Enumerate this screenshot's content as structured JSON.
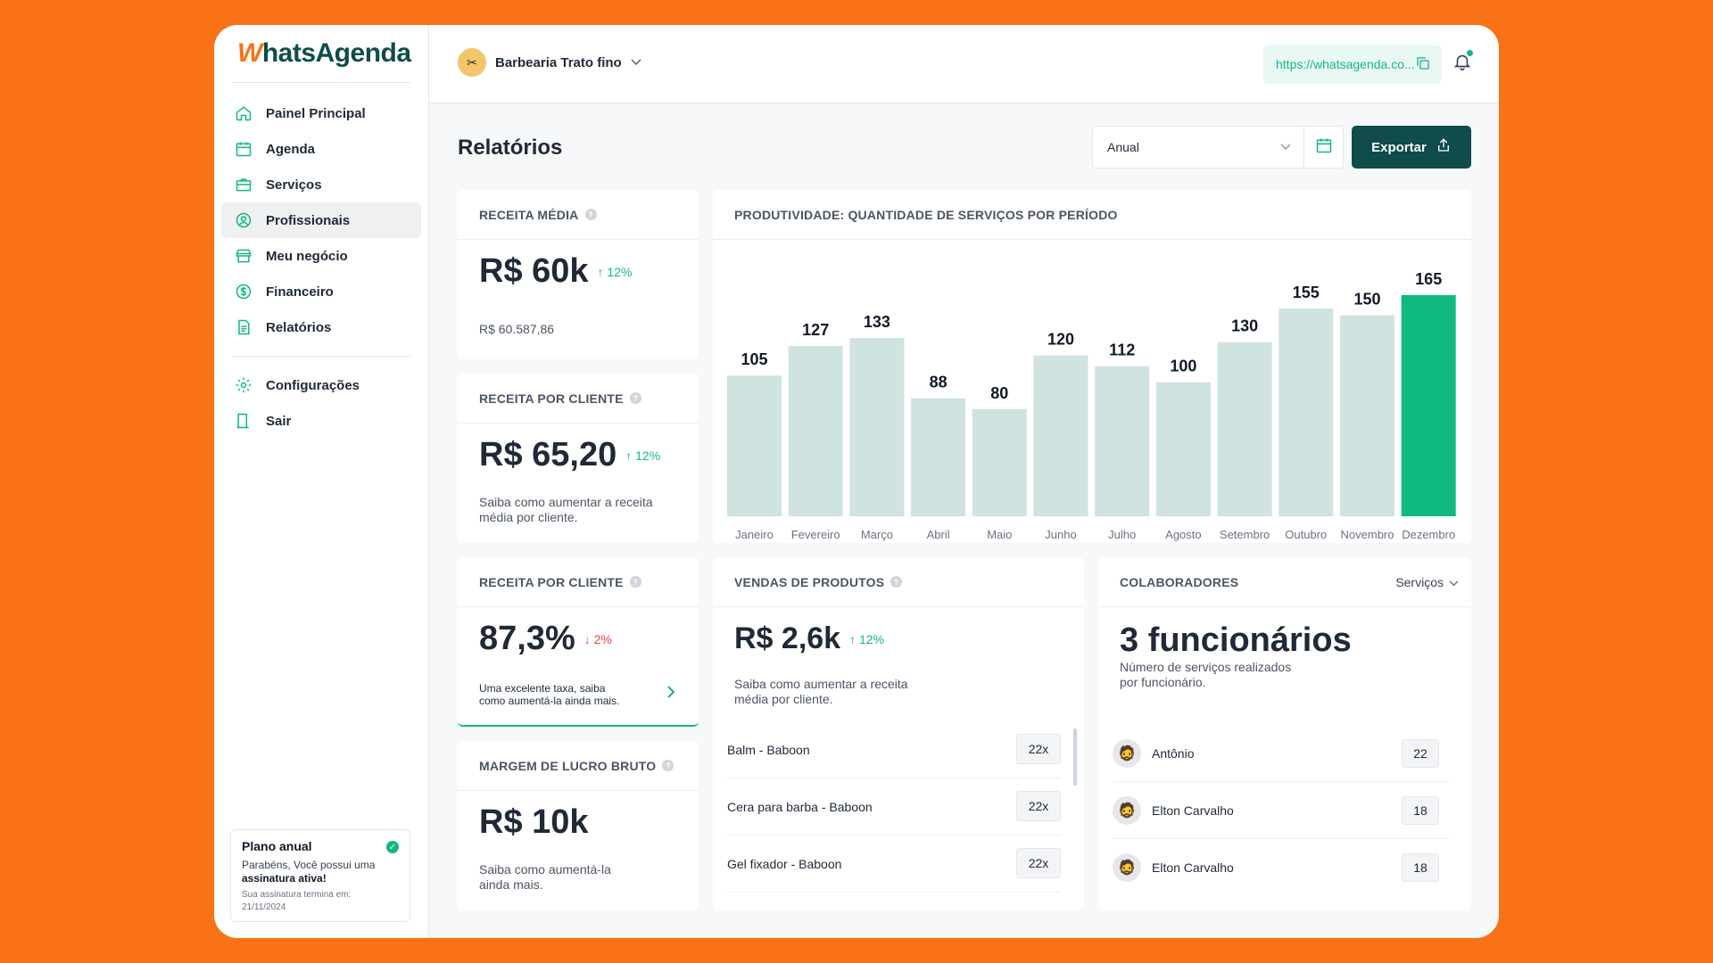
{
  "brand": {
    "logo_w": "W",
    "logo_rest": "hatsAgenda"
  },
  "sidebar": {
    "items": [
      {
        "label": "Painel Principal",
        "icon": "home-icon"
      },
      {
        "label": "Agenda",
        "icon": "calendar-icon"
      },
      {
        "label": "Serviços",
        "icon": "briefcase-icon"
      },
      {
        "label": "Profissionais",
        "icon": "user-circle-icon"
      },
      {
        "label": "Meu negócio",
        "icon": "store-icon"
      },
      {
        "label": "Financeiro",
        "icon": "dollar-icon"
      },
      {
        "label": "Relatórios",
        "icon": "document-icon"
      }
    ],
    "bottom_items": [
      {
        "label": "Configurações",
        "icon": "gear-icon"
      },
      {
        "label": "Sair",
        "icon": "door-icon"
      }
    ],
    "plan": {
      "title": "Plano anual",
      "text_prefix": "Parabéns, Você possui uma",
      "text_bold": "assinatura ativa!",
      "small_line1": "Sua assinatura termina em:",
      "small_line2": "21/11/2024"
    }
  },
  "topbar": {
    "business_name": "Barbearia Trato fino",
    "url": "https://whatsagenda.co..."
  },
  "page": {
    "title": "Relatórios",
    "period_select": "Anual",
    "export_label": "Exportar"
  },
  "cards": {
    "receita_media": {
      "title": "RECEITA MÉDIA",
      "value": "R$ 60k",
      "delta": "↑ 12%",
      "sub": "R$ 60.587,86"
    },
    "receita_cliente": {
      "title": "RECEITA POR CLIENTE",
      "value": "R$ 65,20",
      "delta": "↑ 12%",
      "sub1": "Saiba como aumentar a receita",
      "sub2": "média por cliente."
    },
    "receita_cliente_2": {
      "title": "RECEITA POR CLIENTE",
      "value": "87,3%",
      "delta": "↓ 2%",
      "sub1": "Uma excelente taxa, saiba",
      "sub2": "como aumentá-la ainda mais."
    },
    "margem": {
      "title": "MARGEM DE LUCRO BRUTO",
      "value": "R$ 10k",
      "sub1": "Saiba como aumentá-la",
      "sub2": "ainda mais."
    },
    "vendas": {
      "title": "VENDAS DE PRODUTOS",
      "value": "R$ 2,6k",
      "delta": "↑ 12%",
      "sub1": "Saiba como aumentar a receita",
      "sub2": "média por cliente.",
      "items": [
        {
          "name": "Balm - Baboon",
          "count": "22x"
        },
        {
          "name": "Cera para barba - Baboon",
          "count": "22x"
        },
        {
          "name": "Gel fixador - Baboon",
          "count": "22x"
        }
      ]
    },
    "colaboradores": {
      "title": "COLABORADORES",
      "filter": "Serviços",
      "value": "3 funcionários",
      "sub1": "Número de serviços realizados",
      "sub2": "por funcionário.",
      "people": [
        {
          "name": "Antônio",
          "count": "22"
        },
        {
          "name": "Elton Carvalho",
          "count": "18"
        },
        {
          "name": "Elton Carvalho",
          "count": "18"
        }
      ]
    },
    "produtividade": {
      "title": "PRODUTIVIDADE: QUANTIDADE DE SERVIÇOS POR PERÍODO"
    }
  },
  "chart_data": {
    "type": "bar",
    "title": "PRODUTIVIDADE: QUANTIDADE DE SERVIÇOS POR PERÍODO",
    "categories": [
      "Janeiro",
      "Fevereiro",
      "Março",
      "Abril",
      "Maio",
      "Junho",
      "Julho",
      "Agosto",
      "Setembro",
      "Outubro",
      "Novembro",
      "Dezembro"
    ],
    "values": [
      105,
      127,
      133,
      88,
      80,
      120,
      112,
      100,
      130,
      155,
      150,
      165
    ],
    "highlight_index": 11,
    "colors": {
      "bar": "#cfe3e1",
      "highlight": "#10b981"
    },
    "ylim": [
      0,
      165
    ]
  },
  "colors": {
    "accent": "#10b981",
    "brand_dark": "#0f4c4a",
    "background": "#f97316"
  }
}
